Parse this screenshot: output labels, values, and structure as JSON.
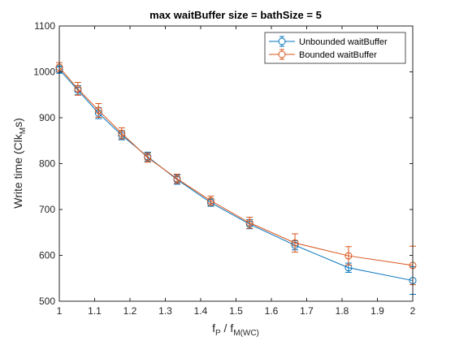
{
  "chart_data": {
    "type": "line",
    "title": "max waitBuffer size = bathSize = 5",
    "xlabel": {
      "main1": "f",
      "sub1": "P",
      "mid": " / f",
      "sub2": "M(WC)"
    },
    "ylabel": {
      "main": "Write time (Clk",
      "sub": "M",
      "end": "s)"
    },
    "xlim": [
      1,
      2
    ],
    "ylim": [
      500,
      1100
    ],
    "xticks": [
      1,
      1.1,
      1.2,
      1.3,
      1.4,
      1.5,
      1.6,
      1.7,
      1.8,
      1.9,
      2
    ],
    "xtick_labels": [
      "1",
      "1.1",
      "1.2",
      "1.3",
      "1.4",
      "1.5",
      "1.6",
      "1.7",
      "1.8",
      "1.9",
      "2"
    ],
    "yticks": [
      500,
      600,
      700,
      800,
      900,
      1000,
      1100
    ],
    "ytick_labels": [
      "500",
      "600",
      "700",
      "800",
      "900",
      "1000",
      "1100"
    ],
    "legend_position": "top-right",
    "x": [
      1,
      1.0526,
      1.1111,
      1.1765,
      1.25,
      1.3333,
      1.4286,
      1.5385,
      1.6667,
      1.8182,
      2
    ],
    "series": [
      {
        "name": "Unbounded waitBuffer",
        "color": "#0072BD",
        "values": [
          1005,
          960,
          910,
          862,
          815,
          765,
          715,
          668,
          622,
          573,
          545
        ],
        "errors": [
          8,
          10,
          12,
          10,
          10,
          10,
          8,
          10,
          10,
          10,
          30
        ]
      },
      {
        "name": "Bounded waitBuffer",
        "color": "#D95319",
        "values": [
          1010,
          963,
          916,
          866,
          813,
          767,
          719,
          671,
          627,
          599,
          578
        ],
        "errors": [
          10,
          14,
          15,
          12,
          10,
          10,
          10,
          12,
          20,
          20,
          42
        ]
      }
    ]
  }
}
